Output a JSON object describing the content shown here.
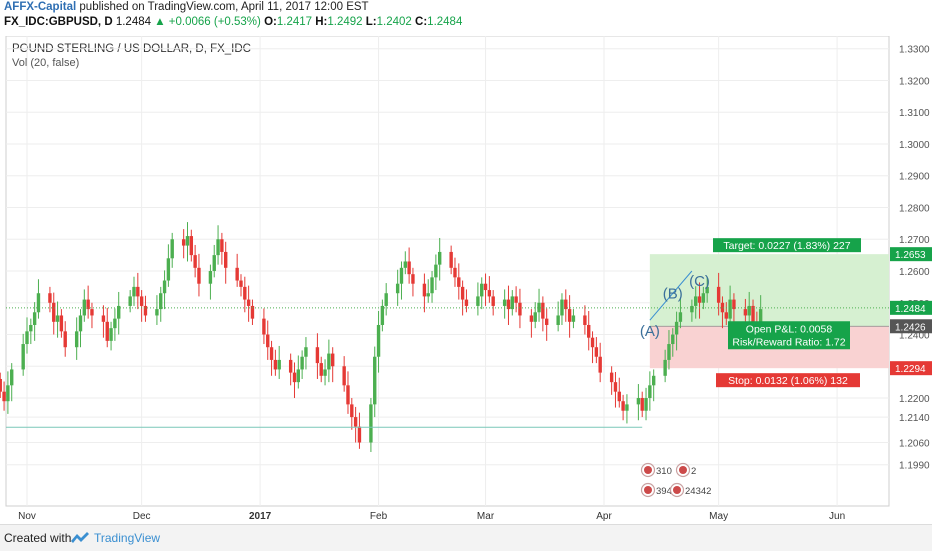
{
  "header": {
    "author": "AFFX-Capital",
    "published": "published on TradingView.com, April 11, 2017 12:00 EST",
    "symbol": "FX_IDC:GBPUSD, D",
    "last": "1.2484",
    "change": "▲ +0.0066 (+0.53%)",
    "o_label": "O:",
    "o_val": "1.2417",
    "h_label": "H:",
    "h_val": "1.2492",
    "l_label": "L:",
    "l_val": "1.2402",
    "c_label": "C:",
    "c_val": "1.2484"
  },
  "chart_data": {
    "type": "candlestick",
    "title": "POUND STERLING / US DOLLAR, D, FX_IDC",
    "subtitle": "Vol (20, false)",
    "ylim": [
      1.186,
      1.334
    ],
    "y_ticks": [
      "1.3300",
      "1.3200",
      "1.3100",
      "1.3000",
      "1.2900",
      "1.2800",
      "1.2700",
      "1.2600",
      "1.2500",
      "1.2400",
      "1.2300",
      "1.2200",
      "1.2140",
      "1.2060",
      "1.1990"
    ],
    "x_ticks": [
      "Nov",
      "Dec",
      "2017",
      "Feb",
      "Mar",
      "Apr",
      "May",
      "Jun"
    ],
    "price_labels": [
      {
        "text": "1.2653",
        "value": 1.2653,
        "color": "#16a34a"
      },
      {
        "text": "1.2484",
        "value": 1.2484,
        "color": "#16a34a"
      },
      {
        "text": "1.2426",
        "value": 1.2426,
        "color": "#555555"
      },
      {
        "text": "1.2294",
        "value": 1.2294,
        "color": "#e53935"
      }
    ],
    "position": {
      "entry": 1.2426,
      "target": 1.2653,
      "stop": 1.2294,
      "target_label": "Target: 0.0227 (1.83%) 227",
      "stop_label": "Stop: 0.0132 (1.06%) 132",
      "pnl_label": "Open P&L: 0.0058",
      "rr_label": "Risk/Reward Ratio: 1.72"
    },
    "wave_labels": [
      "(A)",
      "(B)",
      "(C)"
    ],
    "pattern": [
      {
        "date": "2017-04-13",
        "y": 1.2445
      },
      {
        "date": "2017-04-24",
        "y": 1.26
      }
    ],
    "support_line": 1.2108,
    "icon_counts": {
      "c1": "310",
      "c2": "2",
      "c3": "394",
      "c4": "24342"
    },
    "colors": {
      "up": "#4caf50",
      "down": "#e53935",
      "target_fill": "#d6f0d1",
      "stop_fill": "#f9d2d2",
      "pattern": "#3a8fd1"
    }
  },
  "footer": {
    "created": "Created with",
    "brand": "TradingView"
  }
}
